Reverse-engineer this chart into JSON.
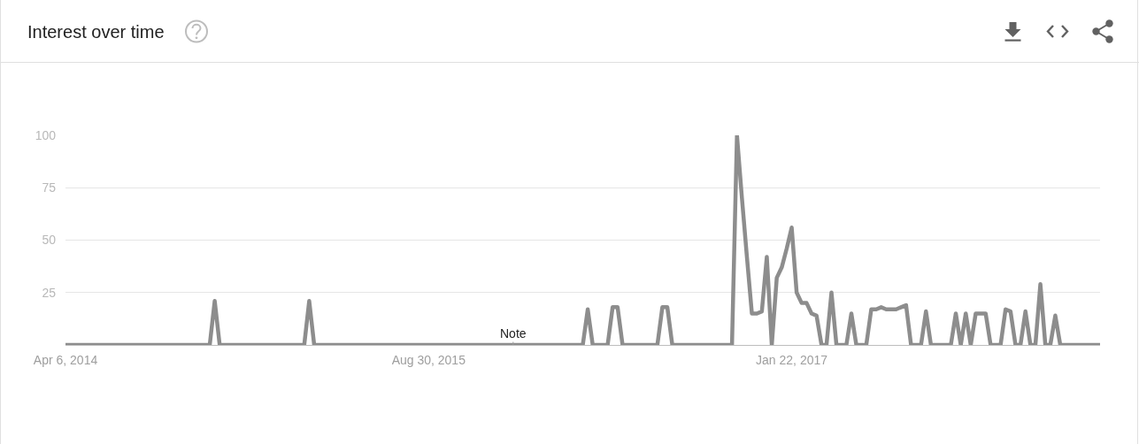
{
  "chart_data": {
    "type": "line",
    "title": "Interest over time",
    "x": [
      "2014-04-06",
      "2014-10-26",
      "2014-11-02",
      "2014-11-09",
      "2015-03-08",
      "2015-03-15",
      "2015-03-22",
      "2016-04-03",
      "2016-04-10",
      "2016-04-17",
      "2016-05-08",
      "2016-05-15",
      "2016-05-22",
      "2016-05-29",
      "2016-07-17",
      "2016-07-24",
      "2016-07-31",
      "2016-08-07",
      "2016-10-30",
      "2016-11-06",
      "2016-11-13",
      "2016-11-20",
      "2016-11-27",
      "2016-12-04",
      "2016-12-11",
      "2016-12-18",
      "2016-12-25",
      "2017-01-01",
      "2017-01-08",
      "2017-01-15",
      "2017-01-22",
      "2017-01-29",
      "2017-02-05",
      "2017-02-12",
      "2017-02-19",
      "2017-02-26",
      "2017-03-05",
      "2017-03-12",
      "2017-03-19",
      "2017-03-26",
      "2017-04-09",
      "2017-04-16",
      "2017-04-23",
      "2017-05-07",
      "2017-05-14",
      "2017-05-21",
      "2017-05-28",
      "2017-06-04",
      "2017-06-11",
      "2017-06-18",
      "2017-06-25",
      "2017-07-02",
      "2017-07-09",
      "2017-07-23",
      "2017-07-30",
      "2017-08-06",
      "2017-09-03",
      "2017-09-10",
      "2017-09-17",
      "2017-09-24",
      "2017-10-01",
      "2017-10-08",
      "2017-10-15",
      "2017-10-22",
      "2017-10-29",
      "2017-11-12",
      "2017-11-19",
      "2017-11-26",
      "2017-12-03",
      "2017-12-10",
      "2017-12-17",
      "2017-12-24",
      "2017-12-31",
      "2018-01-07",
      "2018-01-14",
      "2018-01-21",
      "2018-01-28",
      "2018-02-04",
      "2018-04-01"
    ],
    "series": [
      {
        "color": "#8d8d8d",
        "values": [
          0,
          0,
          21,
          0,
          0,
          21,
          0,
          0,
          17,
          0,
          0,
          18,
          18,
          0,
          0,
          18,
          18,
          0,
          0,
          100,
          70,
          42,
          15,
          15,
          16,
          42,
          0,
          32,
          37,
          46,
          56,
          25,
          20,
          20,
          15,
          14,
          0,
          0,
          25,
          0,
          0,
          15,
          0,
          0,
          17,
          17,
          18,
          17,
          17,
          17,
          18,
          19,
          0,
          0,
          16,
          0,
          0,
          15,
          0,
          15,
          0,
          15,
          15,
          15,
          0,
          0,
          17,
          16,
          0,
          0,
          16,
          0,
          0,
          29,
          0,
          0,
          14,
          0,
          0
        ]
      }
    ],
    "xlim": [
      "2014-04-06",
      "2018-04-01"
    ],
    "xticks": [
      {
        "value": "2014-04-06",
        "label": "Apr 6, 2014"
      },
      {
        "value": "2015-08-30",
        "label": "Aug 30, 2015"
      },
      {
        "value": "2017-01-22",
        "label": "Jan 22, 2017"
      }
    ],
    "ylim": [
      0,
      100
    ],
    "yticks": [
      25,
      50,
      75,
      100
    ],
    "grid": "y",
    "line_style": "solid",
    "annotations": [
      {
        "text": "Note",
        "x": "2015-12-27",
        "y": 0
      }
    ]
  }
}
